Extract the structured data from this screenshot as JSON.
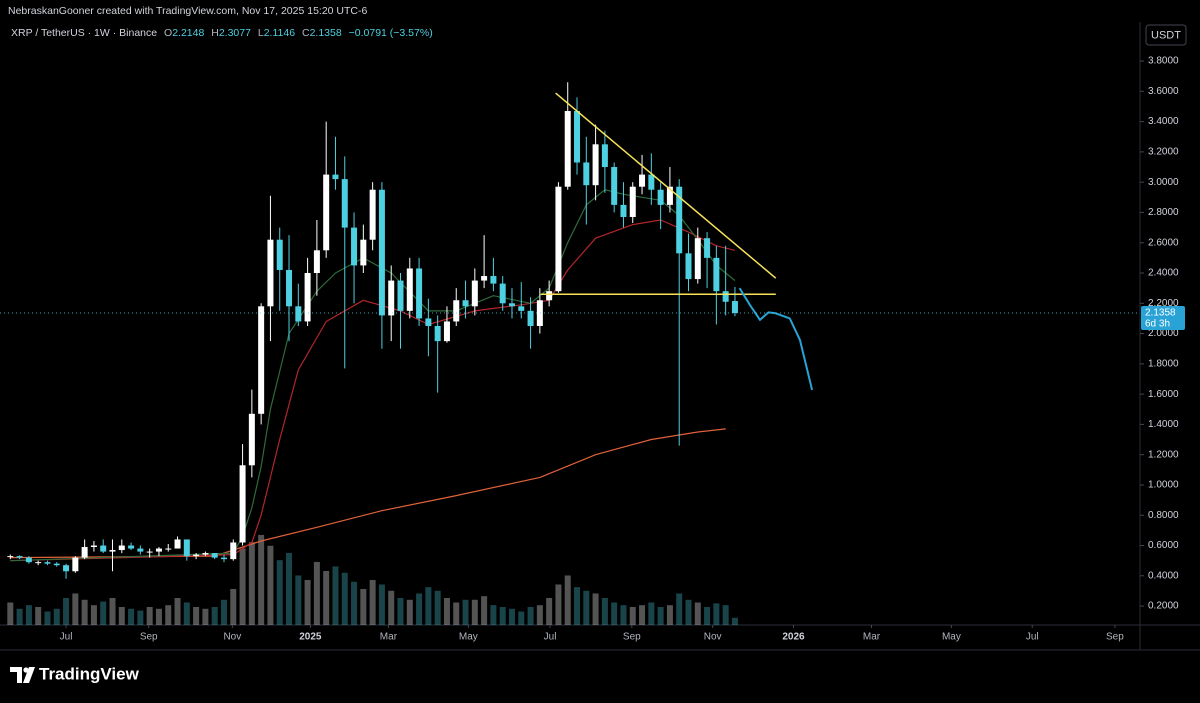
{
  "header": {
    "credit": "NebraskanGooner created with TradingView.com, Nov 17, 2025 15:20 UTC-6",
    "symbol": "XRP / TetherUS · 1W · Binance",
    "ohlc_letters": [
      "O",
      "H",
      "L",
      "C"
    ],
    "change": "−0.0791 (−3.57%)",
    "brand": "TradingView"
  },
  "chart_data": {
    "type": "candlestick",
    "currency": "USDT",
    "countdown": "6d 3h",
    "xlim": [
      -1.11,
      121.6
    ],
    "ylim": [
      0.075,
      3.906
    ],
    "xticks": [
      {
        "value": 6,
        "label": "Jul"
      },
      {
        "value": 14.9,
        "label": "Sep"
      },
      {
        "value": 23.9,
        "label": "Nov"
      },
      {
        "value": 32.3,
        "label": "2025"
      },
      {
        "value": 40.7,
        "label": "Mar"
      },
      {
        "value": 49.3,
        "label": "May"
      },
      {
        "value": 58.1,
        "label": "Jul"
      },
      {
        "value": 66.9,
        "label": "Sep"
      },
      {
        "value": 75.6,
        "label": "Nov"
      },
      {
        "value": 84.3,
        "label": "2026"
      },
      {
        "value": 92.7,
        "label": "Mar"
      },
      {
        "value": 101.3,
        "label": "May"
      },
      {
        "value": 110,
        "label": "Jul"
      },
      {
        "value": 118.9,
        "label": "Sep"
      }
    ],
    "yticks": [
      {
        "value": 0.2,
        "label": "0.2000"
      },
      {
        "value": 0.4,
        "label": "0.4000"
      },
      {
        "value": 0.6,
        "label": "0.6000"
      },
      {
        "value": 0.8,
        "label": "0.8000"
      },
      {
        "value": 1.0,
        "label": "1.0000"
      },
      {
        "value": 1.2,
        "label": "1.2000"
      },
      {
        "value": 1.4,
        "label": "1.4000"
      },
      {
        "value": 1.6,
        "label": "1.6000"
      },
      {
        "value": 1.8,
        "label": "1.8000"
      },
      {
        "value": 2.0,
        "label": "2.0000"
      },
      {
        "value": 2.2,
        "label": "2.2000"
      },
      {
        "value": 2.4,
        "label": "2.4000"
      },
      {
        "value": 2.6,
        "label": "2.6000"
      },
      {
        "value": 2.8,
        "label": "2.8000"
      },
      {
        "value": 3.0,
        "label": "3.0000"
      },
      {
        "value": 3.2,
        "label": "3.2000"
      },
      {
        "value": 3.4,
        "label": "3.4000"
      },
      {
        "value": 3.6,
        "label": "3.6000"
      },
      {
        "value": 3.8,
        "label": "3.8000"
      }
    ],
    "grid": false,
    "up_color": "#ffffff",
    "down_color": "#4dd0e1",
    "candles": {
      "open": [
        0.525,
        0.53,
        0.52,
        0.49,
        0.49,
        0.48,
        0.47,
        0.43,
        0.52,
        0.59,
        0.6,
        0.56,
        0.57,
        0.6,
        0.58,
        0.56,
        0.56,
        0.58,
        0.58,
        0.64,
        0.53,
        0.54,
        0.55,
        0.52,
        0.51,
        0.62,
        1.13,
        1.47,
        2.18,
        2.62,
        2.42,
        2.18,
        2.08,
        2.4,
        2.55,
        3.05,
        3.02,
        2.7,
        2.45,
        2.62,
        2.95,
        2.12,
        2.35,
        2.15,
        2.43,
        2.1,
        2.05,
        1.95,
        2.08,
        2.22,
        2.18,
        2.35,
        2.38,
        2.33,
        2.2,
        2.18,
        2.15,
        2.05,
        2.22,
        2.28,
        2.97,
        3.47,
        3.13,
        2.98,
        3.25,
        3.1,
        2.85,
        2.77,
        2.97,
        3.05,
        2.95,
        2.85,
        2.97,
        2.53,
        2.36,
        2.63,
        2.5,
        2.28,
        2.2148
      ],
      "high": [
        0.54,
        0.535,
        0.53,
        0.5,
        0.5,
        0.49,
        0.48,
        0.53,
        0.64,
        0.63,
        0.64,
        0.64,
        0.64,
        0.62,
        0.6,
        0.58,
        0.59,
        0.61,
        0.66,
        0.64,
        0.55,
        0.56,
        0.55,
        0.54,
        0.64,
        1.27,
        1.63,
        2.2,
        2.91,
        2.7,
        2.65,
        2.33,
        2.5,
        2.75,
        3.4,
        3.3,
        3.17,
        2.8,
        2.72,
        3.0,
        3.0,
        2.45,
        2.4,
        2.5,
        2.5,
        2.23,
        2.12,
        2.18,
        2.3,
        2.35,
        2.43,
        2.65,
        2.5,
        2.38,
        2.3,
        2.34,
        2.24,
        2.3,
        2.35,
        3.0,
        3.66,
        3.56,
        3.3,
        3.38,
        3.34,
        3.13,
        3.0,
        3.0,
        3.18,
        3.19,
        3.0,
        3.1,
        3.02,
        2.66,
        2.7,
        2.67,
        2.58,
        2.58,
        2.3077
      ],
      "low": [
        0.51,
        0.51,
        0.48,
        0.47,
        0.47,
        0.46,
        0.38,
        0.42,
        0.51,
        0.56,
        0.55,
        0.43,
        0.55,
        0.57,
        0.54,
        0.52,
        0.53,
        0.56,
        0.58,
        0.5,
        0.51,
        0.53,
        0.51,
        0.49,
        0.5,
        0.6,
        1.05,
        1.4,
        1.95,
        2.15,
        1.95,
        2.05,
        2.05,
        2.25,
        2.5,
        2.95,
        1.77,
        2.2,
        2.4,
        2.55,
        1.9,
        1.95,
        1.9,
        2.1,
        2.05,
        1.85,
        1.61,
        1.94,
        2.05,
        2.1,
        2.12,
        2.3,
        2.28,
        2.15,
        2.1,
        2.1,
        1.9,
        2.0,
        2.18,
        2.27,
        2.95,
        3.05,
        2.72,
        2.88,
        2.93,
        2.8,
        2.7,
        2.73,
        2.92,
        2.85,
        2.69,
        2.8,
        1.26,
        2.28,
        2.33,
        2.3,
        2.06,
        2.12,
        2.1146
      ],
      "close": [
        0.53,
        0.52,
        0.49,
        0.49,
        0.48,
        0.47,
        0.43,
        0.52,
        0.59,
        0.6,
        0.56,
        0.57,
        0.6,
        0.58,
        0.56,
        0.56,
        0.58,
        0.58,
        0.64,
        0.53,
        0.54,
        0.55,
        0.52,
        0.51,
        0.62,
        1.13,
        1.47,
        2.18,
        2.62,
        2.42,
        2.18,
        2.08,
        2.4,
        2.55,
        3.05,
        3.02,
        2.7,
        2.45,
        2.62,
        2.95,
        2.12,
        2.35,
        2.15,
        2.43,
        2.1,
        2.05,
        1.95,
        2.08,
        2.22,
        2.18,
        2.35,
        2.38,
        2.33,
        2.2,
        2.18,
        2.15,
        2.05,
        2.22,
        2.28,
        2.97,
        3.47,
        3.13,
        2.98,
        3.25,
        3.1,
        2.85,
        2.77,
        2.97,
        3.05,
        2.95,
        2.85,
        2.97,
        2.53,
        2.36,
        2.63,
        2.5,
        2.28,
        2.21,
        2.1358
      ]
    },
    "volume": {
      "ylim": [
        0,
        644
      ],
      "values": [
        25,
        18,
        22,
        20,
        15,
        18,
        30,
        35,
        28,
        22,
        26,
        30,
        20,
        18,
        16,
        20,
        18,
        22,
        30,
        25,
        20,
        18,
        20,
        28,
        40,
        85,
        92,
        100,
        88,
        72,
        80,
        55,
        50,
        70,
        60,
        65,
        58,
        48,
        40,
        50,
        45,
        38,
        30,
        28,
        35,
        42,
        38,
        30,
        25,
        28,
        28,
        32,
        22,
        20,
        18,
        15,
        20,
        22,
        30,
        45,
        55,
        42,
        38,
        35,
        30,
        25,
        22,
        20,
        22,
        25,
        20,
        22,
        35,
        28,
        25,
        20,
        24,
        22,
        8
      ]
    },
    "overlays": [
      {
        "color": "#e0623a",
        "x": [
          0,
          22,
          27,
          33,
          40,
          48,
          57,
          63,
          69,
          74,
          77
        ],
        "values": [
          0.52,
          0.53,
          0.63,
          0.72,
          0.83,
          0.93,
          1.05,
          1.2,
          1.3,
          1.35,
          1.37
        ]
      },
      {
        "color": "#b3262b",
        "x": [
          0,
          24,
          26,
          27,
          28,
          29,
          31,
          34,
          38,
          42,
          45,
          50,
          55,
          58,
          60,
          63,
          67,
          70,
          73,
          76,
          78
        ],
        "values": [
          0.5,
          0.54,
          0.62,
          0.8,
          1.05,
          1.3,
          1.76,
          2.08,
          2.22,
          2.15,
          2.06,
          2.15,
          2.19,
          2.22,
          2.42,
          2.63,
          2.72,
          2.75,
          2.67,
          2.58,
          2.55
        ]
      },
      {
        "color": "#2e6b3a",
        "x": [
          0,
          24,
          25,
          26,
          27,
          28,
          30,
          33,
          35,
          38,
          41,
          45,
          48,
          52,
          56,
          58,
          60,
          62,
          64,
          66,
          68,
          70,
          72,
          74,
          76,
          78
        ],
        "values": [
          0.5,
          0.55,
          0.66,
          0.85,
          1.12,
          1.5,
          2.0,
          2.28,
          2.4,
          2.5,
          2.4,
          2.15,
          2.15,
          2.25,
          2.2,
          2.3,
          2.6,
          2.85,
          2.95,
          2.92,
          2.9,
          2.88,
          2.78,
          2.62,
          2.45,
          2.35
        ]
      }
    ],
    "trendlines": [
      {
        "color": "#f7e35a",
        "x": [
          58.7,
          82.4
        ],
        "values": [
          3.588,
          2.366
        ]
      },
      {
        "color": "#f7e35a",
        "x": [
          57.1,
          82.4
        ],
        "values": [
          2.26,
          2.26
        ]
      }
    ],
    "projection": {
      "color": "#29a3d6",
      "x": [
        78.5,
        79.6,
        80.7,
        81.6,
        82.3,
        83.9,
        85.0,
        86.3
      ],
      "values": [
        2.3,
        2.19,
        2.09,
        2.14,
        2.135,
        2.1,
        1.957,
        1.627
      ]
    }
  }
}
